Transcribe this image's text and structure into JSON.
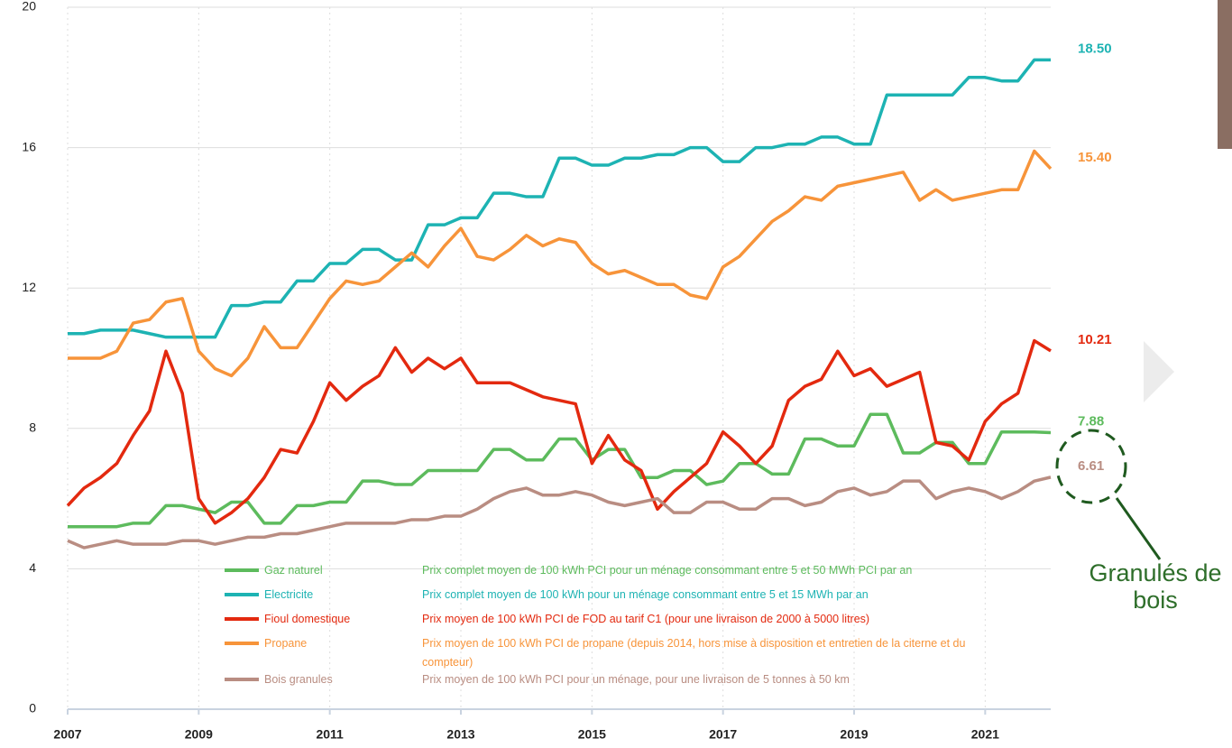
{
  "chart_data": {
    "type": "line",
    "x": [
      2007,
      2007.25,
      2007.5,
      2007.75,
      2008,
      2008.25,
      2008.5,
      2008.75,
      2009,
      2009.25,
      2009.5,
      2009.75,
      2010,
      2010.25,
      2010.5,
      2010.75,
      2011,
      2011.25,
      2011.5,
      2011.75,
      2012,
      2012.25,
      2012.5,
      2012.75,
      2013,
      2013.25,
      2013.5,
      2013.75,
      2014,
      2014.25,
      2014.5,
      2014.75,
      2015,
      2015.25,
      2015.5,
      2015.75,
      2016,
      2016.25,
      2016.5,
      2016.75,
      2017,
      2017.25,
      2017.5,
      2017.75,
      2018,
      2018.25,
      2018.5,
      2018.75,
      2019,
      2019.25,
      2019.5,
      2019.75,
      2020,
      2020.25,
      2020.5,
      2020.75,
      2021,
      2021.25,
      2021.5,
      2021.75,
      2022
    ],
    "xlim": [
      2007,
      2022
    ],
    "xticks": [
      2007,
      2009,
      2011,
      2013,
      2015,
      2017,
      2019,
      2021
    ],
    "ylim": [
      0,
      20
    ],
    "yticks": [
      0,
      4,
      8,
      12,
      16,
      20
    ],
    "grid": true,
    "annotation": "Granulés de bois",
    "series": [
      {
        "name": "Gaz naturel",
        "color": "#5dbb5d",
        "description": "Prix complet moyen de 100 kWh PCI pour un ménage consommant entre 5 et 50 MWh PCI par an",
        "end_label": "7.88",
        "values": [
          5.2,
          5.2,
          5.2,
          5.2,
          5.3,
          5.3,
          5.8,
          5.8,
          5.7,
          5.6,
          5.9,
          5.9,
          5.3,
          5.3,
          5.8,
          5.8,
          5.9,
          5.9,
          6.5,
          6.5,
          6.4,
          6.4,
          6.8,
          6.8,
          6.8,
          6.8,
          7.4,
          7.4,
          7.1,
          7.1,
          7.7,
          7.7,
          7.1,
          7.4,
          7.4,
          6.6,
          6.6,
          6.8,
          6.8,
          6.4,
          6.5,
          7.0,
          7.0,
          6.7,
          6.7,
          7.7,
          7.7,
          7.5,
          7.5,
          8.4,
          8.4,
          7.3,
          7.3,
          7.6,
          7.6,
          7.0,
          7.0,
          7.9,
          7.9,
          7.9,
          7.88
        ]
      },
      {
        "name": "Electricite",
        "color": "#1db3b3",
        "description": "Prix complet moyen de 100 kWh pour un ménage consommant entre 5 et 15 MWh par an",
        "end_label": "18.50",
        "values": [
          10.7,
          10.7,
          10.8,
          10.8,
          10.8,
          10.7,
          10.6,
          10.6,
          10.6,
          10.6,
          11.5,
          11.5,
          11.6,
          11.6,
          12.2,
          12.2,
          12.7,
          12.7,
          13.1,
          13.1,
          12.8,
          12.8,
          13.8,
          13.8,
          14.0,
          14.0,
          14.7,
          14.7,
          14.6,
          14.6,
          15.7,
          15.7,
          15.5,
          15.5,
          15.7,
          15.7,
          15.8,
          15.8,
          16.0,
          16.0,
          15.6,
          15.6,
          16.0,
          16.0,
          16.1,
          16.1,
          16.3,
          16.3,
          16.1,
          16.1,
          17.5,
          17.5,
          17.5,
          17.5,
          17.5,
          18.0,
          18.0,
          17.9,
          17.9,
          18.5,
          18.5
        ]
      },
      {
        "name": "Fioul domestique",
        "color": "#e3290f",
        "description": "Prix moyen de 100 kWh PCI de FOD au tarif C1 (pour une livraison de 2000 à 5000 litres)",
        "end_label": "10.21",
        "values": [
          5.8,
          6.3,
          6.6,
          7.0,
          7.8,
          8.5,
          10.2,
          9.0,
          6.0,
          5.3,
          5.6,
          6.0,
          6.6,
          7.4,
          7.3,
          8.2,
          9.3,
          8.8,
          9.2,
          9.5,
          10.3,
          9.6,
          10.0,
          9.7,
          10.0,
          9.3,
          9.3,
          9.3,
          9.1,
          8.9,
          8.8,
          8.7,
          7.0,
          7.8,
          7.1,
          6.8,
          5.7,
          6.2,
          6.6,
          7.0,
          7.9,
          7.5,
          7.0,
          7.5,
          8.8,
          9.2,
          9.4,
          10.2,
          9.5,
          9.7,
          9.2,
          9.4,
          9.6,
          7.6,
          7.5,
          7.1,
          8.2,
          8.7,
          9.0,
          10.5,
          10.21
        ]
      },
      {
        "name": "Propane",
        "color": "#f7943a",
        "description": "Prix moyen de 100 kWh PCI de propane (depuis 2014, hors mise à disposition et entretien de la citerne et du compteur)",
        "end_label": "15.40",
        "values": [
          10.0,
          10.0,
          10.0,
          10.2,
          11.0,
          11.1,
          11.6,
          11.7,
          10.2,
          9.7,
          9.5,
          10.0,
          10.9,
          10.3,
          10.3,
          11.0,
          11.7,
          12.2,
          12.1,
          12.2,
          12.6,
          13.0,
          12.6,
          13.2,
          13.7,
          12.9,
          12.8,
          13.1,
          13.5,
          13.2,
          13.4,
          13.3,
          12.7,
          12.4,
          12.5,
          12.3,
          12.1,
          12.1,
          11.8,
          11.7,
          12.6,
          12.9,
          13.4,
          13.9,
          14.2,
          14.6,
          14.5,
          14.9,
          15.0,
          15.1,
          15.2,
          15.3,
          14.5,
          14.8,
          14.5,
          14.6,
          14.7,
          14.8,
          14.8,
          15.9,
          15.4
        ]
      },
      {
        "name": "Bois granules",
        "color": "#b98d82",
        "description": "Prix moyen de 100 kWh PCI pour un ménage, pour une livraison de 5 tonnes à 50 km",
        "end_label": "6.61",
        "values": [
          4.8,
          4.6,
          4.7,
          4.8,
          4.7,
          4.7,
          4.7,
          4.8,
          4.8,
          4.7,
          4.8,
          4.9,
          4.9,
          5.0,
          5.0,
          5.1,
          5.2,
          5.3,
          5.3,
          5.3,
          5.3,
          5.4,
          5.4,
          5.5,
          5.5,
          5.7,
          6.0,
          6.2,
          6.3,
          6.1,
          6.1,
          6.2,
          6.1,
          5.9,
          5.8,
          5.9,
          6.0,
          5.6,
          5.6,
          5.9,
          5.9,
          5.7,
          5.7,
          6.0,
          6.0,
          5.8,
          5.9,
          6.2,
          6.3,
          6.1,
          6.2,
          6.5,
          6.5,
          6.0,
          6.2,
          6.3,
          6.2,
          6.0,
          6.2,
          6.5,
          6.61
        ]
      }
    ]
  }
}
